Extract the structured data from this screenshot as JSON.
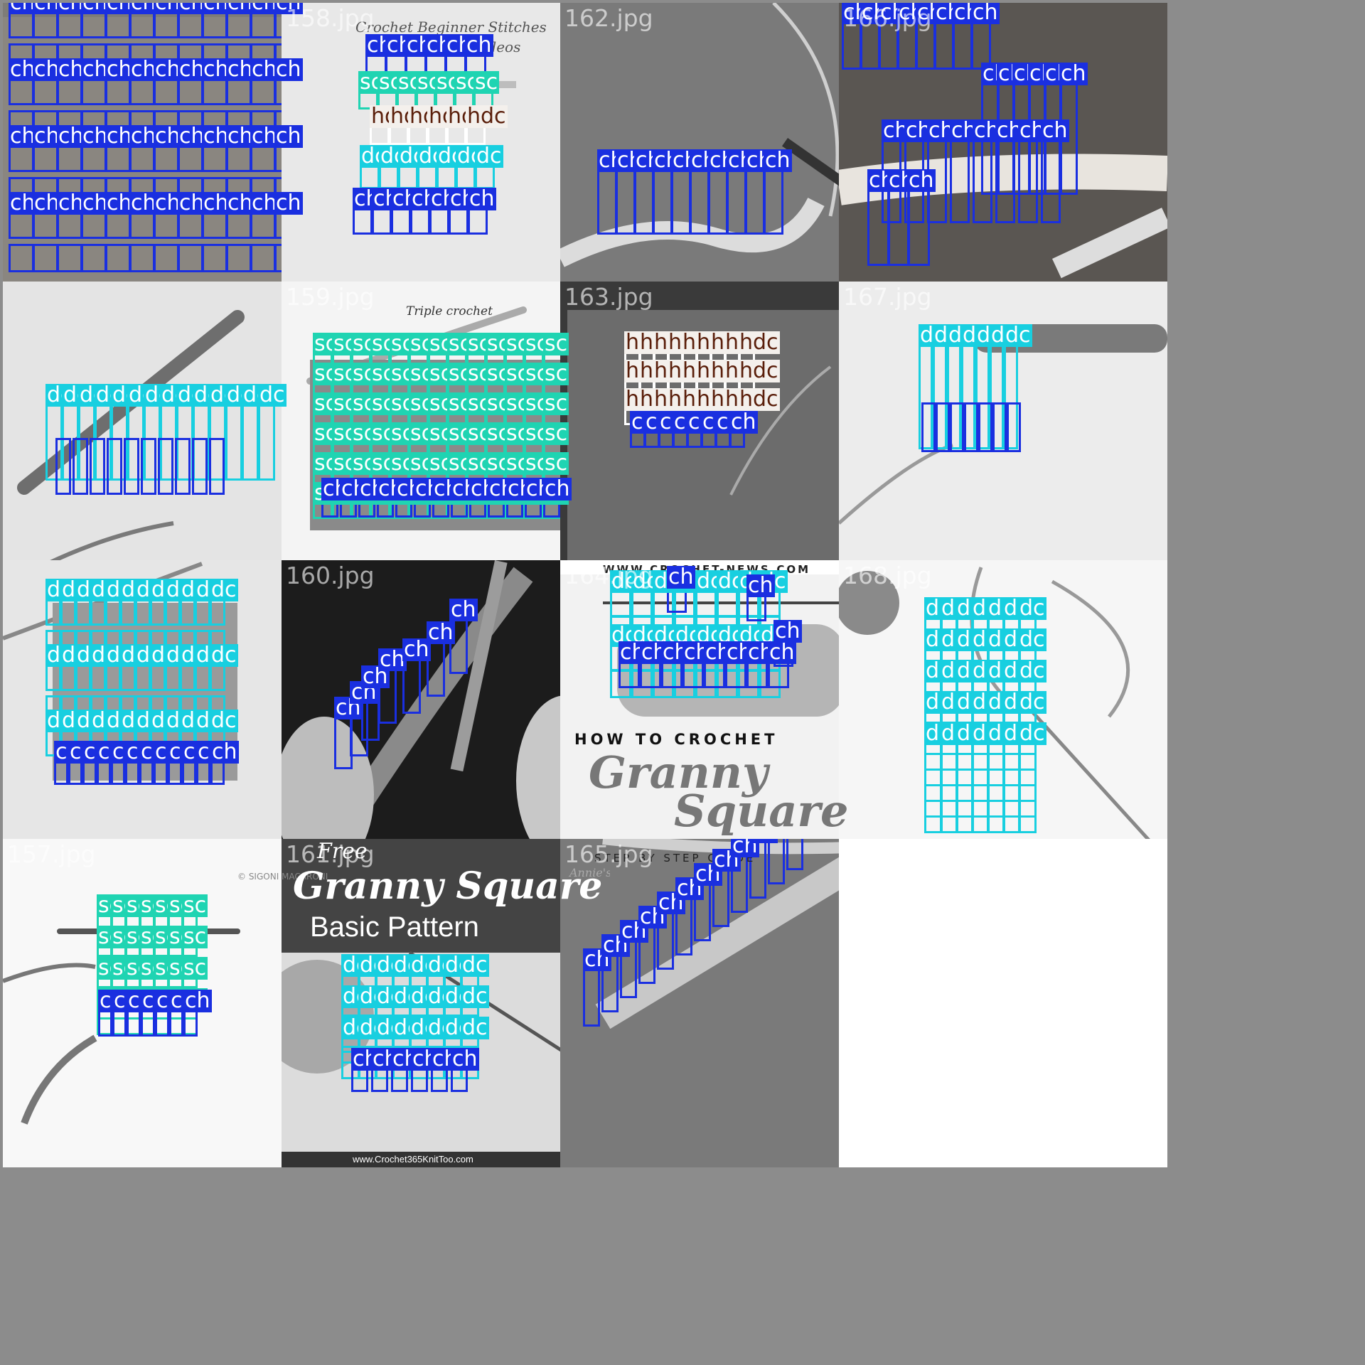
{
  "classes": {
    "ch": "#1a2fe0",
    "sc": "#1fd4b2",
    "dc": "#18cfe0",
    "hdc": "#ffffff"
  },
  "tiles": [
    {
      "file": "",
      "bg": "#7e7c78"
    },
    {
      "file": "158.jpg",
      "bg": "#e8e8e8",
      "text_title_1": "Crochet Beginner Stitches",
      "text_title_2": "and Tutorial Videos",
      "text_caption": "Triple crochet"
    },
    {
      "file": "162.jpg",
      "bg": "#7a7a7a"
    },
    {
      "file": "166.jpg",
      "bg": "#5a5652"
    },
    {
      "file": "",
      "bg": "#e4e4e4"
    },
    {
      "file": "159.jpg",
      "bg": "#f4f4f4"
    },
    {
      "file": "163.jpg",
      "bg": "#6c6c6c"
    },
    {
      "file": "167.jpg",
      "bg": "#ececec"
    },
    {
      "file": "",
      "bg": "#e6e6e6",
      "credit": "© SIGONI MACARONI"
    },
    {
      "file": "160.jpg",
      "bg": "#1c1c1c",
      "credit": "Annie's"
    },
    {
      "file": "164.jpg",
      "bg": "#f2f2f2",
      "top_url": "WWW.CROCHET-NEWS.COM",
      "text_1": "HOW TO CROCHET",
      "text_2": "Granny",
      "text_3": "Square",
      "text_4": "STEP BY STEP GUIDE"
    },
    {
      "file": "168.jpg",
      "bg": "#f6f6f6"
    },
    {
      "file": "157.jpg",
      "bg": "#f8f8f8"
    },
    {
      "file": "161.jpg",
      "bg": "#dcdcdc",
      "text_free": "Free",
      "text_1": "Granny Square",
      "text_2": "Basic Pattern",
      "text_url": "www.Crochet365KnitToo.com"
    },
    {
      "file": "165.jpg",
      "bg": "#7a7a7a"
    }
  ]
}
